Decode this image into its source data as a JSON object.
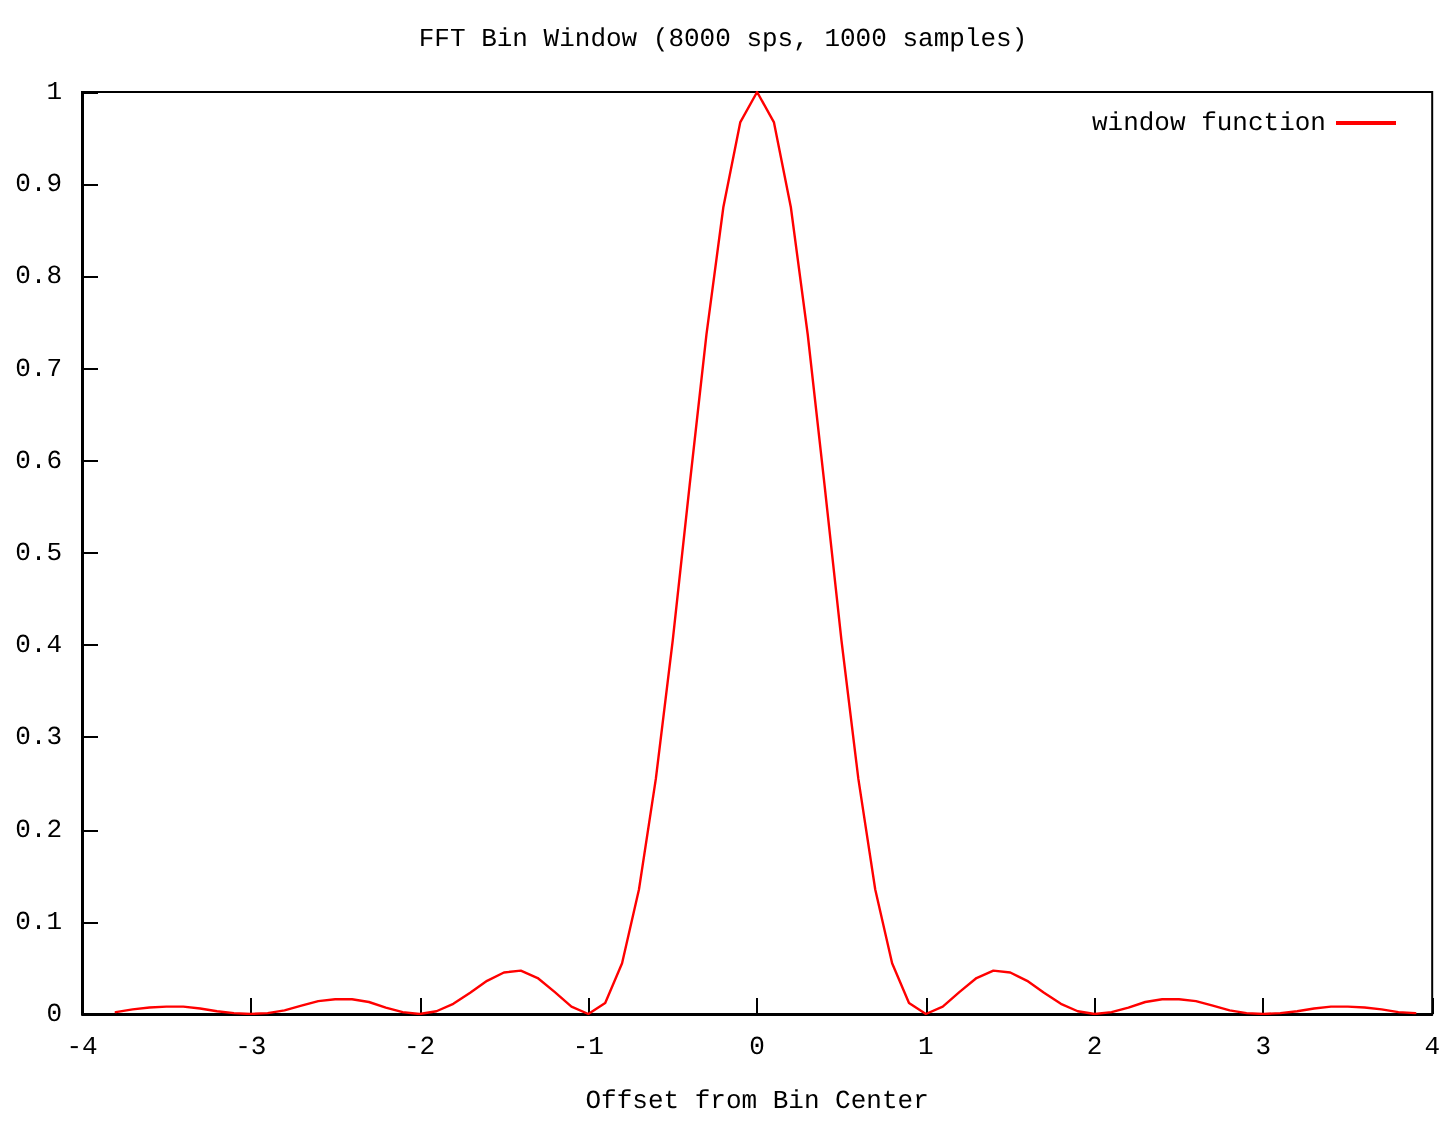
{
  "chart_data": {
    "type": "line",
    "title": "FFT Bin Window (8000 sps, 1000 samples)",
    "xlabel": "Offset from Bin Center",
    "xlim": [
      -4,
      4
    ],
    "xticks": [
      -4,
      -3,
      -2,
      -1,
      0,
      1,
      2,
      3,
      4
    ],
    "ylim": [
      0,
      1
    ],
    "yticks": [
      0,
      0.1,
      0.2,
      0.3,
      0.4,
      0.5,
      0.6,
      0.7,
      0.8,
      0.9,
      1
    ],
    "grid": false,
    "legend": "top right",
    "marker": "none",
    "line_style": "solid",
    "series": [
      {
        "name": "window function",
        "color": "#ff0000",
        "x": [
          -3.8,
          -3.7,
          -3.6,
          -3.5,
          -3.4,
          -3.3,
          -3.2,
          -3.1,
          -3,
          -2.9,
          -2.8,
          -2.7,
          -2.6,
          -2.5,
          -2.4,
          -2.3,
          -2.2,
          -2.1,
          -2,
          -1.9,
          -1.8,
          -1.7,
          -1.6,
          -1.5,
          -1.4,
          -1.3,
          -1.2,
          -1.1,
          -1,
          -0.9,
          -0.8,
          -0.7,
          -0.6,
          -0.5,
          -0.4,
          -0.3,
          -0.2,
          -0.1,
          0,
          0.1,
          0.2,
          0.3,
          0.4,
          0.5,
          0.6,
          0.7,
          0.8,
          0.9,
          1,
          1.1,
          1.2,
          1.3,
          1.4,
          1.5,
          1.6,
          1.7,
          1.8,
          1.9,
          2,
          2.1,
          2.2,
          2.3,
          2.4,
          2.5,
          2.6,
          2.7,
          2.8,
          2.9,
          3,
          3.1,
          3.2,
          3.3,
          3.4,
          3.5,
          3.6,
          3.7,
          3.8,
          3.9
        ],
        "values": [
          0.002,
          0.005,
          0.007,
          0.008,
          0.008,
          0.006,
          0.003,
          0.001,
          0,
          0.001,
          0.004,
          0.009,
          0.014,
          0.016,
          0.016,
          0.013,
          0.007,
          0.002,
          0,
          0.003,
          0.011,
          0.023,
          0.036,
          0.045,
          0.047,
          0.039,
          0.024,
          0.008,
          0,
          0.012,
          0.055,
          0.135,
          0.255,
          0.405,
          0.573,
          0.737,
          0.875,
          0.967,
          1,
          0.967,
          0.875,
          0.737,
          0.573,
          0.405,
          0.255,
          0.135,
          0.055,
          0.012,
          0,
          0.008,
          0.024,
          0.039,
          0.047,
          0.045,
          0.036,
          0.023,
          0.011,
          0.003,
          0,
          0.002,
          0.007,
          0.013,
          0.016,
          0.016,
          0.014,
          0.009,
          0.004,
          0.001,
          0,
          0.001,
          0.003,
          0.006,
          0.008,
          0.008,
          0.007,
          0.005,
          0.002,
          0.001
        ]
      }
    ]
  }
}
